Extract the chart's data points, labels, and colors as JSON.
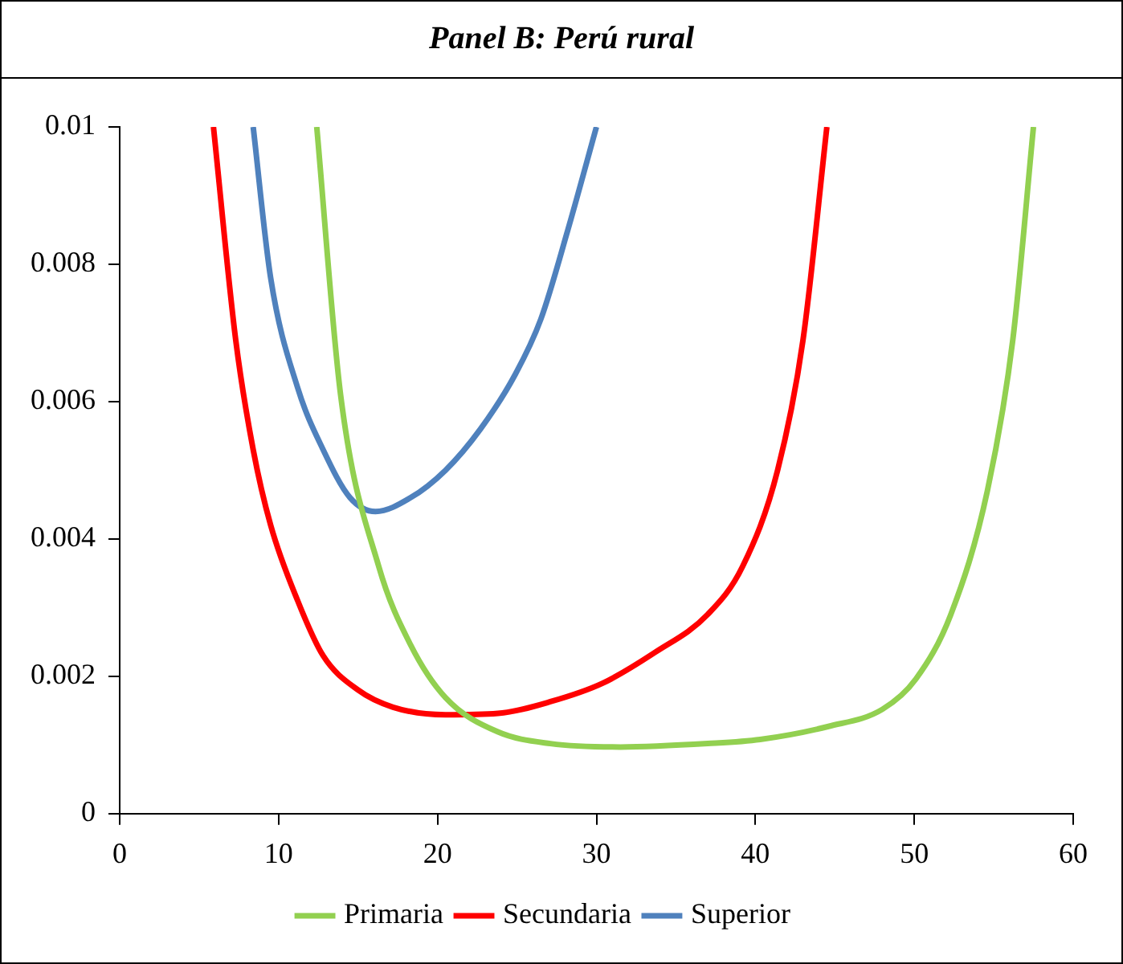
{
  "chart_data": {
    "type": "line",
    "title": "Panel B: Perú rural",
    "xlim": [
      0,
      60
    ],
    "xticks": [
      0,
      10,
      20,
      30,
      40,
      50,
      60
    ],
    "ylim": [
      0,
      0.01
    ],
    "yticks": [
      0,
      0.002,
      0.004,
      0.006,
      0.008,
      0.01
    ],
    "grid": false,
    "legend": "bottom",
    "marker": "none",
    "line_style": "solid",
    "series": [
      {
        "name": "Primaria",
        "color": "#92d050",
        "x": [
          12.4,
          13.9,
          16.3,
          18.3,
          20.5,
          23.8,
          27.1,
          31.5,
          37,
          40.3,
          44.6,
          48,
          50.1,
          52.3,
          54.6,
          56.2,
          57.5
        ],
        "values": [
          0.01,
          0.0061,
          0.0036,
          0.00246,
          0.00169,
          0.00119,
          0.00102,
          0.00097,
          0.00102,
          0.00108,
          0.00127,
          0.00152,
          0.00196,
          0.0029,
          0.0047,
          0.0069,
          0.01
        ]
      },
      {
        "name": "Secundaria",
        "color": "#ff0000",
        "x": [
          5.9,
          7.3,
          8.4,
          9.5,
          11.2,
          12.8,
          15,
          17.2,
          20.5,
          23.8,
          27.1,
          30.4,
          33.7,
          37,
          39.2,
          41.4,
          43,
          44.5
        ],
        "values": [
          0.01,
          0.0069,
          0.0053,
          0.0042,
          0.0031,
          0.0023,
          0.0018,
          0.00155,
          0.00144,
          0.00146,
          0.00163,
          0.0019,
          0.00235,
          0.0029,
          0.0036,
          0.005,
          0.0069,
          0.01
        ]
      },
      {
        "name": "Superior",
        "color": "#4f81bd",
        "x": [
          8.4,
          9.5,
          11.2,
          12.8,
          14.5,
          16.1,
          18.3,
          20.5,
          22.7,
          24.9,
          26.5,
          28.2,
          30
        ],
        "values": [
          0.01,
          0.0078,
          0.0062,
          0.0053,
          0.0046,
          0.0044,
          0.0046,
          0.005,
          0.0056,
          0.0064,
          0.0072,
          0.0085,
          0.01
        ]
      }
    ]
  }
}
